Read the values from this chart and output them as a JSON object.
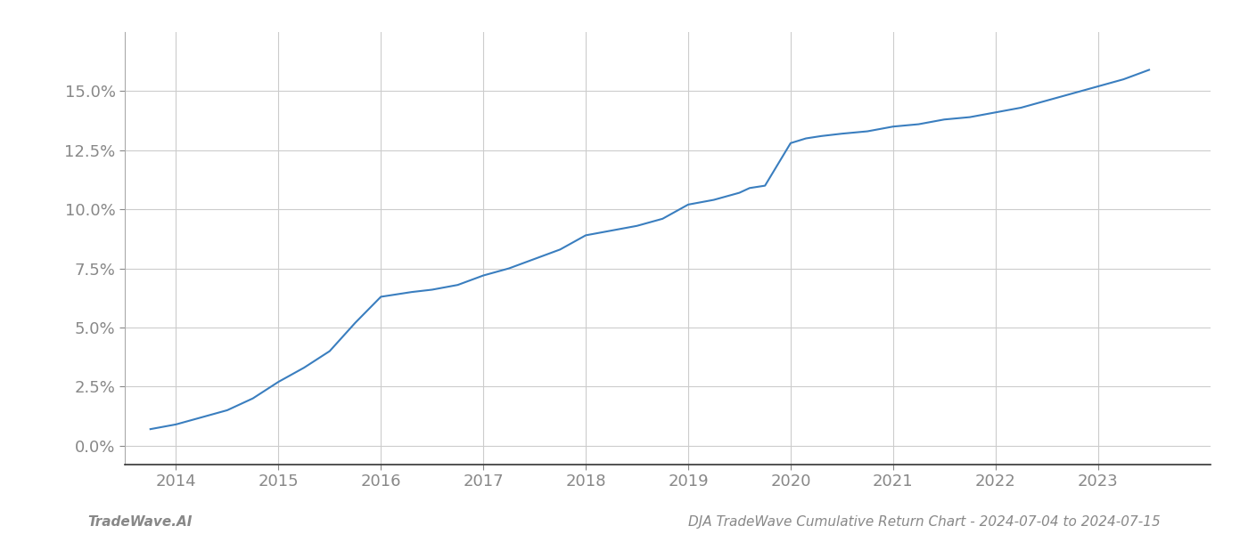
{
  "x_data": [
    2013.75,
    2014.0,
    2014.25,
    2014.5,
    2014.75,
    2015.0,
    2015.25,
    2015.5,
    2015.75,
    2016.0,
    2016.15,
    2016.3,
    2016.5,
    2016.75,
    2017.0,
    2017.25,
    2017.5,
    2017.75,
    2018.0,
    2018.25,
    2018.5,
    2018.75,
    2019.0,
    2019.25,
    2019.5,
    2019.6,
    2019.75,
    2020.0,
    2020.15,
    2020.3,
    2020.5,
    2020.75,
    2021.0,
    2021.25,
    2021.5,
    2021.75,
    2022.0,
    2022.25,
    2022.5,
    2022.75,
    2023.0,
    2023.25,
    2023.5
  ],
  "y_data": [
    0.007,
    0.009,
    0.012,
    0.015,
    0.02,
    0.027,
    0.033,
    0.04,
    0.052,
    0.063,
    0.064,
    0.065,
    0.066,
    0.068,
    0.072,
    0.075,
    0.079,
    0.083,
    0.089,
    0.091,
    0.093,
    0.096,
    0.102,
    0.104,
    0.107,
    0.109,
    0.11,
    0.128,
    0.13,
    0.131,
    0.132,
    0.133,
    0.135,
    0.136,
    0.138,
    0.139,
    0.141,
    0.143,
    0.146,
    0.149,
    0.152,
    0.155,
    0.159
  ],
  "line_color": "#3a7ebf",
  "line_width": 1.5,
  "background_color": "#ffffff",
  "grid_color": "#cccccc",
  "tick_label_color": "#888888",
  "xlabel_years": [
    2014,
    2015,
    2016,
    2017,
    2018,
    2019,
    2020,
    2021,
    2022,
    2023
  ],
  "yticks": [
    0.0,
    0.025,
    0.05,
    0.075,
    0.1,
    0.125,
    0.15
  ],
  "ymin": -0.008,
  "ymax": 0.175,
  "xmin": 2013.5,
  "xmax": 2024.1,
  "footer_left": "TradeWave.AI",
  "footer_right": "DJA TradeWave Cumulative Return Chart - 2024-07-04 to 2024-07-15",
  "footer_color": "#888888",
  "footer_fontsize": 11,
  "tick_fontsize": 13
}
